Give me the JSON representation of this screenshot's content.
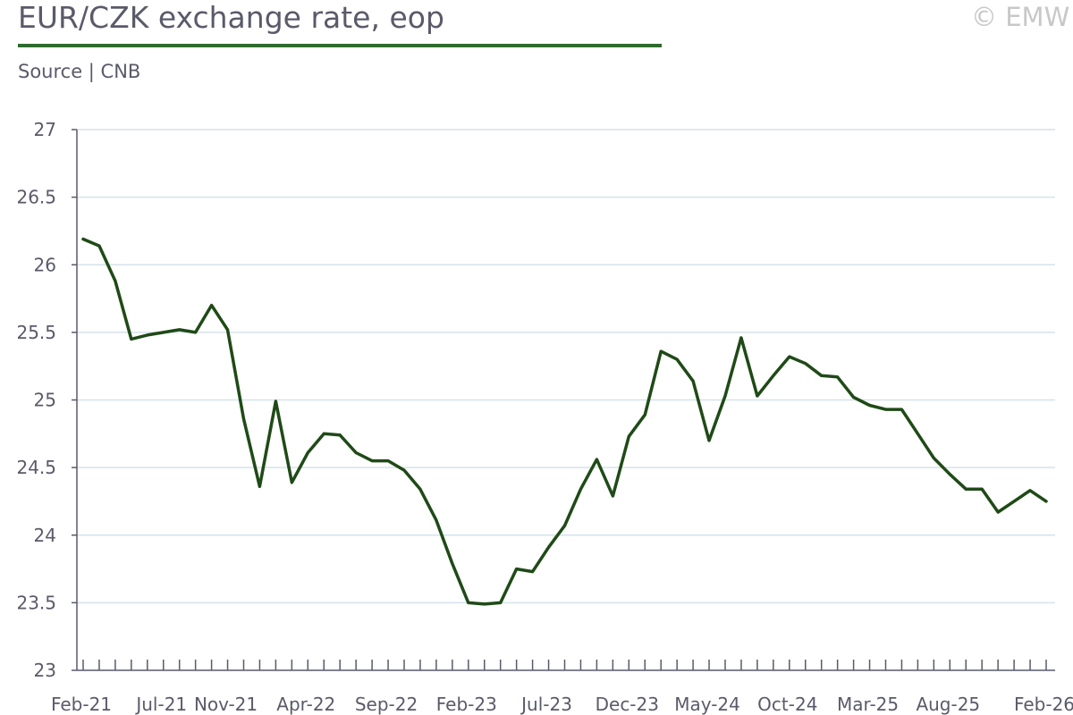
{
  "header": {
    "title": "EUR/CZK exchange rate, eop",
    "source": "Source | CNB",
    "brand": "© EMW"
  },
  "colors": {
    "line": "#1f4a17",
    "grid": "#d6e2ea",
    "axis": "#5a5a6a",
    "rule": "#2e6b2e"
  },
  "chart_data": {
    "type": "line",
    "title": "EUR/CZK exchange rate, eop",
    "xlabel": "",
    "ylabel": "",
    "ylim": [
      23,
      27
    ],
    "yticks": [
      23,
      23.5,
      24,
      24.5,
      25,
      25.5,
      26,
      26.5,
      27
    ],
    "ytick_labels": [
      "23",
      "23.5",
      "24",
      "24.5",
      "25",
      "25.5",
      "26",
      "26.5",
      "27"
    ],
    "grid": true,
    "x_tick_labels": [
      {
        "index": 0,
        "label": "Feb-21"
      },
      {
        "index": 5,
        "label": "Jul-21"
      },
      {
        "index": 9,
        "label": "Nov-21"
      },
      {
        "index": 14,
        "label": "Apr-22"
      },
      {
        "index": 19,
        "label": "Sep-22"
      },
      {
        "index": 24,
        "label": "Feb-23"
      },
      {
        "index": 29,
        "label": "Jul-23"
      },
      {
        "index": 34,
        "label": "Dec-23"
      },
      {
        "index": 39,
        "label": "May-24"
      },
      {
        "index": 44,
        "label": "Oct-24"
      },
      {
        "index": 49,
        "label": "Mar-25"
      },
      {
        "index": 54,
        "label": "Aug-25"
      },
      {
        "index": 60,
        "label": "Feb-26"
      }
    ],
    "series": [
      {
        "values": [
          26.19,
          26.14,
          25.88,
          25.45,
          25.48,
          25.5,
          25.52,
          25.5,
          25.7,
          25.52,
          24.86,
          24.36,
          24.99,
          24.39,
          24.61,
          24.75,
          24.74,
          24.61,
          24.55,
          24.55,
          24.48,
          24.34,
          24.11,
          23.79,
          23.5,
          23.49,
          23.5,
          23.75,
          23.73,
          23.91,
          24.07,
          24.34,
          24.56,
          24.29,
          24.73,
          24.89,
          25.36,
          25.3,
          25.14,
          24.7,
          25.03,
          25.46,
          25.03,
          25.18,
          25.32,
          25.27,
          25.18,
          25.17,
          25.02,
          24.96,
          24.93,
          24.93,
          24.75,
          24.57,
          24.45,
          24.34,
          24.34,
          24.17,
          24.25,
          24.33,
          24.25
        ]
      }
    ]
  }
}
